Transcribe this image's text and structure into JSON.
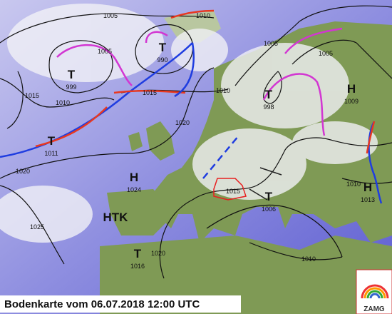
{
  "map": {
    "pressure_centers": [
      {
        "symbol": "T",
        "value": 999
      },
      {
        "symbol": "T",
        "value": 990
      },
      {
        "symbol": "T",
        "value": 998
      },
      {
        "symbol": "H",
        "value": 1009
      },
      {
        "symbol": "T",
        "value": 1011
      },
      {
        "symbol": "H",
        "value": 1024
      },
      {
        "symbol": "HTK"
      },
      {
        "symbol": "T",
        "value": 1016
      },
      {
        "symbol": "T",
        "value": 1006
      },
      {
        "symbol": "H",
        "value": 1013
      }
    ],
    "isobar_labels": [
      1005,
      1010,
      1005,
      1015,
      1010,
      1015,
      1010,
      1005,
      1005,
      1020,
      1020,
      1025,
      1020,
      1015,
      1010,
      1010
    ],
    "footer": "Bodenkarte vom 06.07.2018 12:00 UTC",
    "logo": "ZAMG"
  }
}
